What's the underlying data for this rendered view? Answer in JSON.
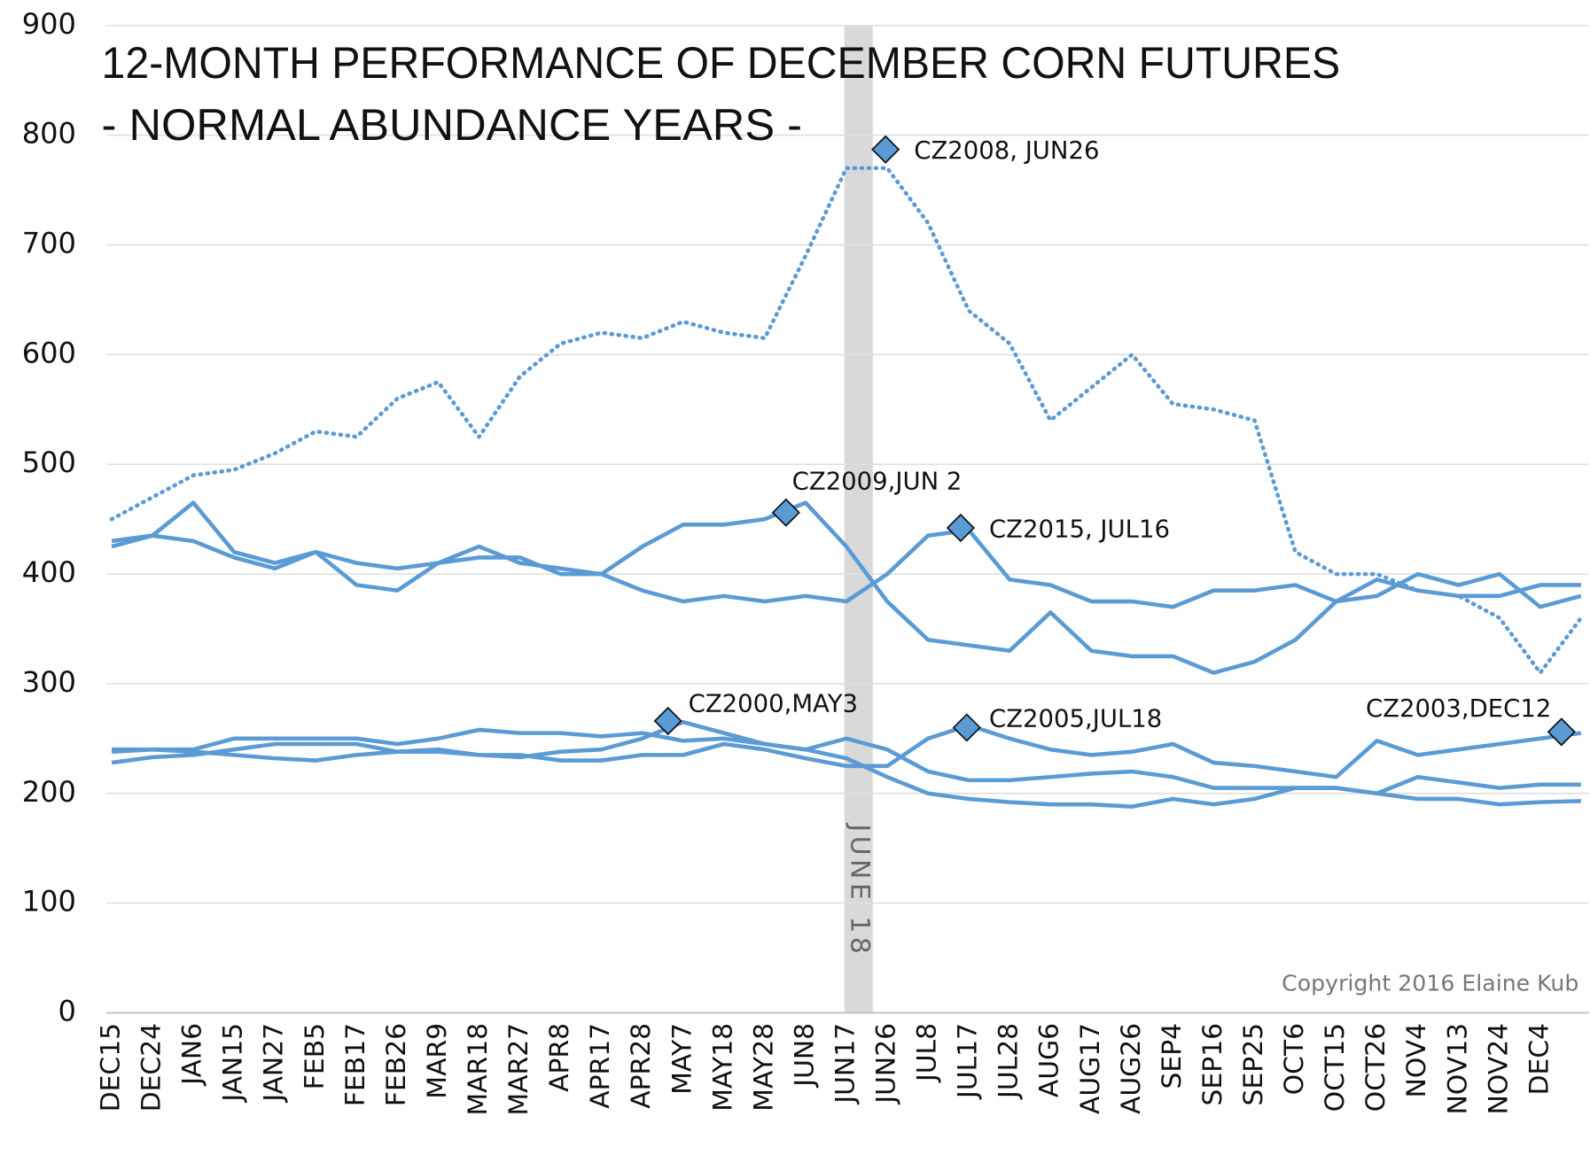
{
  "chart_data": {
    "type": "line",
    "title": "12-MONTH PERFORMANCE OF DECEMBER CORN FUTURES",
    "subtitle": "- NORMAL ABUNDANCE YEARS -",
    "categories": [
      "DEC15",
      "DEC24",
      "JAN6",
      "JAN15",
      "JAN27",
      "FEB5",
      "FEB17",
      "FEB26",
      "MAR9",
      "MAR18",
      "MAR27",
      "APR8",
      "APR17",
      "APR28",
      "MAY7",
      "MAY18",
      "MAY28",
      "JUN8",
      "JUN17",
      "JUN26",
      "JUL8",
      "JUL17",
      "JUL28",
      "AUG6",
      "AUG17",
      "AUG26",
      "SEP4",
      "SEP16",
      "SEP25",
      "OCT6",
      "OCT15",
      "OCT26",
      "NOV4",
      "NOV13",
      "NOV24",
      "DEC4",
      null
    ],
    "series": [
      {
        "color": "#5b9bd5",
        "style": "dotted",
        "values": [
          450,
          470,
          490,
          495,
          510,
          530,
          525,
          560,
          575,
          525,
          580,
          610,
          620,
          615,
          630,
          620,
          615,
          690,
          770,
          770,
          720,
          640,
          610,
          540,
          570,
          600,
          555,
          550,
          540,
          420,
          400,
          400,
          385,
          380,
          360,
          310,
          360
        ]
      },
      {
        "color": "#5b9bd5",
        "style": "solid",
        "values": [
          430,
          435,
          465,
          420,
          410,
          420,
          410,
          405,
          410,
          425,
          410,
          405,
          400,
          425,
          445,
          445,
          450,
          465,
          425,
          375,
          340,
          335,
          330,
          365,
          330,
          325,
          325,
          310,
          320,
          340,
          375,
          395,
          385,
          380,
          380,
          390,
          390
        ]
      },
      {
        "color": "#5b9bd5",
        "style": "solid",
        "values": [
          425,
          435,
          430,
          415,
          405,
          420,
          390,
          385,
          410,
          415,
          415,
          400,
          400,
          385,
          375,
          380,
          375,
          380,
          375,
          400,
          435,
          440,
          395,
          390,
          375,
          375,
          370,
          385,
          385,
          390,
          375,
          380,
          400,
          390,
          400,
          370,
          380
        ]
      },
      {
        "color": "#5b9bd5",
        "style": "solid",
        "values": [
          238,
          240,
          238,
          235,
          232,
          230,
          235,
          238,
          240,
          235,
          233,
          238,
          240,
          250,
          265,
          255,
          245,
          240,
          232,
          215,
          200,
          195,
          192,
          190,
          190,
          188,
          195,
          190,
          195,
          205,
          205,
          200,
          195,
          195,
          190,
          192,
          193
        ]
      },
      {
        "color": "#5b9bd5",
        "style": "solid",
        "values": [
          228,
          233,
          235,
          240,
          245,
          245,
          245,
          238,
          238,
          235,
          235,
          230,
          230,
          235,
          235,
          245,
          240,
          232,
          225,
          225,
          250,
          262,
          250,
          240,
          235,
          238,
          245,
          228,
          225,
          220,
          215,
          248,
          235,
          240,
          245,
          250,
          255
        ]
      },
      {
        "color": "#5b9bd5",
        "style": "solid",
        "values": [
          240,
          240,
          240,
          250,
          250,
          250,
          250,
          245,
          250,
          258,
          255,
          255,
          252,
          255,
          248,
          250,
          245,
          240,
          250,
          240,
          220,
          212,
          212,
          215,
          218,
          220,
          215,
          205,
          205,
          205,
          205,
          200,
          215,
          210,
          205,
          208,
          208
        ]
      }
    ],
    "annotations": [
      {
        "text": "CZ2008, JUN26",
        "x": 18.96,
        "value": 787
      },
      {
        "text": "CZ2009,JUN 2",
        "x": 16.52,
        "value": 456
      },
      {
        "text": "CZ2015, JUL16",
        "x": 20.8,
        "value": 442
      },
      {
        "text": "CZ2000,MAY3",
        "x": 13.63,
        "value": 266
      },
      {
        "text": "CZ2005,JUL18",
        "x": 20.95,
        "value": 260
      },
      {
        "text": "CZ2003,DEC12",
        "x": 35.52,
        "value": 256
      }
    ],
    "band": {
      "label": "JUNE 18",
      "x": 18.3
    },
    "copyright": "Copyright 2016 Elaine Kub",
    "ylim": [
      0,
      900
    ],
    "yticks": [
      0,
      100,
      200,
      300,
      400,
      500,
      600,
      700,
      800,
      900
    ],
    "grid": true
  }
}
